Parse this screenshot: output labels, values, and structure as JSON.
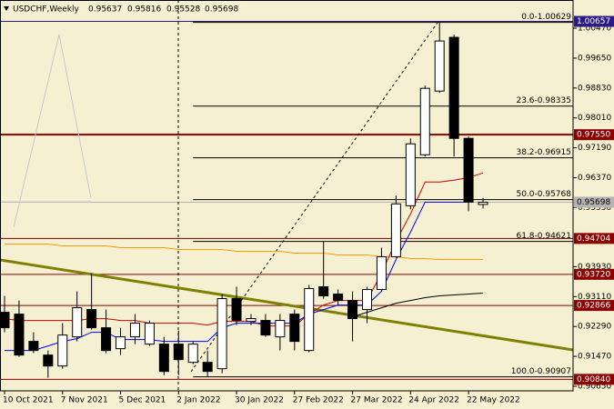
{
  "chart_data": {
    "type": "candlestick",
    "title": "USDCHF,Weekly",
    "categories": [
      "10 Oct 2021",
      null,
      null,
      null,
      "7 Nov 2021",
      null,
      null,
      null,
      "5 Dec 2021",
      null,
      null,
      null,
      "2 Jan 2022",
      null,
      null,
      null,
      "30 Jan 2022",
      null,
      null,
      null,
      "27 Feb 2022",
      null,
      null,
      null,
      "27 Mar 2022",
      null,
      null,
      null,
      "24 Apr 2022",
      null,
      null,
      null,
      "22 May 2022",
      null
    ],
    "open": [
      0.92679,
      0.92629,
      0.91881,
      0.91506,
      0.91206,
      0.92005,
      0.92754,
      0.92255,
      0.91681,
      0.92005,
      0.91806,
      0.91806,
      0.91806,
      0.91306,
      0.91306,
      0.91131,
      0.93054,
      0.9243,
      0.92455,
      0.92005,
      0.92629,
      0.91631,
      0.93379,
      0.93179,
      0.93004,
      0.92754,
      0.93304,
      0.94203,
      0.95601,
      0.96999,
      0.98747,
      1.0022,
      0.97449,
      0.95637
    ],
    "high": [
      0.93129,
      0.93004,
      0.9213,
      0.91631,
      0.9238,
      0.93254,
      0.93753,
      0.92754,
      0.92255,
      0.92629,
      0.92455,
      0.92005,
      0.9218,
      0.91881,
      0.91631,
      0.93179,
      0.93379,
      0.92629,
      0.92629,
      0.92629,
      0.92754,
      0.93429,
      0.94627,
      0.93304,
      0.93254,
      0.93379,
      0.94452,
      0.95876,
      0.97449,
      0.98897,
      1.00629,
      1.00295,
      0.97499,
      0.95816
    ],
    "low": [
      0.9213,
      0.91456,
      0.91556,
      0.90882,
      0.91131,
      0.91881,
      0.92205,
      0.91556,
      0.91506,
      0.91806,
      0.91756,
      0.90957,
      0.90957,
      0.91256,
      0.90907,
      0.91007,
      0.9233,
      0.9233,
      0.92005,
      0.91631,
      0.91631,
      0.91581,
      0.93054,
      0.92879,
      0.91881,
      0.9238,
      0.93254,
      0.94178,
      0.95501,
      0.96949,
      0.98697,
      0.96949,
      0.95451,
      0.95528
    ],
    "close": [
      0.92255,
      0.91506,
      0.91631,
      0.91206,
      0.92055,
      0.92804,
      0.92255,
      0.91631,
      0.92005,
      0.9238,
      0.9238,
      0.91057,
      0.91381,
      0.91806,
      0.91057,
      0.93054,
      0.92455,
      0.92505,
      0.92055,
      0.92455,
      0.91881,
      0.93329,
      0.93129,
      0.93004,
      0.92505,
      0.93304,
      0.94203,
      0.95651,
      0.97299,
      0.98822,
      1.0012,
      0.97449,
      0.95701,
      0.95698
    ],
    "up_color": "#ffffff",
    "down_color": "#000000",
    "lines": [
      {
        "color": "#ff9900",
        "values": [
          0.94552,
          0.94552,
          0.94552,
          0.94552,
          0.94502,
          0.94502,
          0.94502,
          0.94502,
          0.94452,
          0.94452,
          0.94452,
          0.94452,
          0.94402,
          0.94402,
          0.94402,
          0.94402,
          0.94352,
          0.94352,
          0.94352,
          0.94352,
          0.94302,
          0.94302,
          0.94302,
          0.94252,
          0.94252,
          0.94252,
          0.94203,
          0.94203,
          0.94153,
          0.94153,
          0.94128,
          0.94128,
          0.94128,
          0.94128
        ]
      },
      {
        "color": "#000000",
        "values": [
          null,
          null,
          null,
          null,
          null,
          null,
          null,
          null,
          null,
          null,
          null,
          null,
          null,
          null,
          null,
          null,
          null,
          null,
          null,
          null,
          null,
          null,
          null,
          null,
          0.92554,
          0.92679,
          0.92804,
          0.92929,
          0.93004,
          0.93079,
          0.93129,
          0.93154,
          0.93179,
          0.93204
        ]
      },
      {
        "color": "#cc0000",
        "values": [
          0.92505,
          0.92455,
          0.92455,
          0.92455,
          0.92455,
          0.92455,
          0.92505,
          0.92505,
          0.92455,
          0.92455,
          0.9238,
          0.9238,
          0.9238,
          0.9238,
          0.9233,
          0.9243,
          0.9243,
          0.9243,
          0.92305,
          0.92305,
          0.92305,
          0.92629,
          0.92879,
          0.93004,
          0.93004,
          0.93004,
          0.93753,
          0.94627,
          0.95376,
          0.9625,
          0.9625,
          0.963,
          0.96375,
          0.965
        ]
      },
      {
        "color": "#0000ff",
        "values": [
          0.91631,
          0.91631,
          0.91631,
          0.91756,
          0.91881,
          0.91955,
          0.9213,
          0.9213,
          0.9193,
          0.9193,
          0.9193,
          0.91881,
          0.91881,
          0.91881,
          0.91881,
          0.92255,
          0.9238,
          0.9238,
          0.9238,
          0.9238,
          0.9238,
          0.92629,
          0.92754,
          0.92879,
          0.92879,
          0.92879,
          0.93254,
          0.94128,
          0.94877,
          0.95701,
          0.95701,
          0.95701,
          0.95701,
          null
        ]
      }
    ],
    "levels": [
      {
        "price": 1.00657,
        "color": "#2b1a85",
        "text_color": "#ffffff"
      },
      {
        "price": {
          "value": 0.9755,
          "label": "0.97550"
        },
        "color": "#8b0000",
        "text_color": "#ffffff"
      },
      {
        "price": 0.95698,
        "color": "#b4b4b4",
        "text_color": "#000000"
      },
      {
        "price": 0.94704,
        "color": "#8b0000",
        "text_color": "#ffffff"
      },
      {
        "price": {
          "value": 0.9372,
          "label": "0.93720"
        },
        "color": "#8b0000",
        "text_color": "#ffffff"
      },
      {
        "price": 0.92866,
        "color": "#8b0000",
        "text_color": "#ffffff"
      },
      {
        "price": {
          "value": 0.9084,
          "label": "0.90840"
        },
        "color": "#8b0000",
        "text_color": "#ffffff"
      }
    ],
    "fib_levels": [
      {
        "value": 1.00629,
        "label": "0.0-1.00629"
      },
      {
        "value": 0.98335,
        "label": "23.6-0.98335"
      },
      {
        "value": 0.96915,
        "label": "38.2-0.96915"
      },
      {
        "value": 0.95768,
        "label": "50.0-0.95768"
      },
      {
        "value": 0.94621,
        "label": "61.8-0.94621"
      },
      {
        "value": 0.90907,
        "label": "100.0-0.90907"
      }
    ],
    "ylim": [
      0.90525,
      1.01244
    ],
    "yticks": [
      {
        "value": 1.0047,
        "label": "1.00470"
      },
      {
        "value": 0.9965,
        "label": "0.99650"
      },
      {
        "value": 0.9883,
        "label": "0.98830"
      },
      {
        "value": 0.9801,
        "label": "0.98010"
      },
      {
        "value": 0.9719,
        "label": "0.97190"
      },
      {
        "value": 0.9637,
        "label": "0.96370"
      },
      {
        "value": 0.9555,
        "label": "0.95550"
      },
      {
        "value": 0.9393,
        "label": "0.93930"
      },
      {
        "value": 0.9311,
        "label": "0.93110"
      },
      {
        "value": 0.9229,
        "label": "0.92290"
      },
      {
        "value": 0.9147,
        "label": "0.91470"
      },
      {
        "value": 0.9065,
        "label": "0.90650"
      }
    ],
    "background": "#f6f0d2"
  }
}
